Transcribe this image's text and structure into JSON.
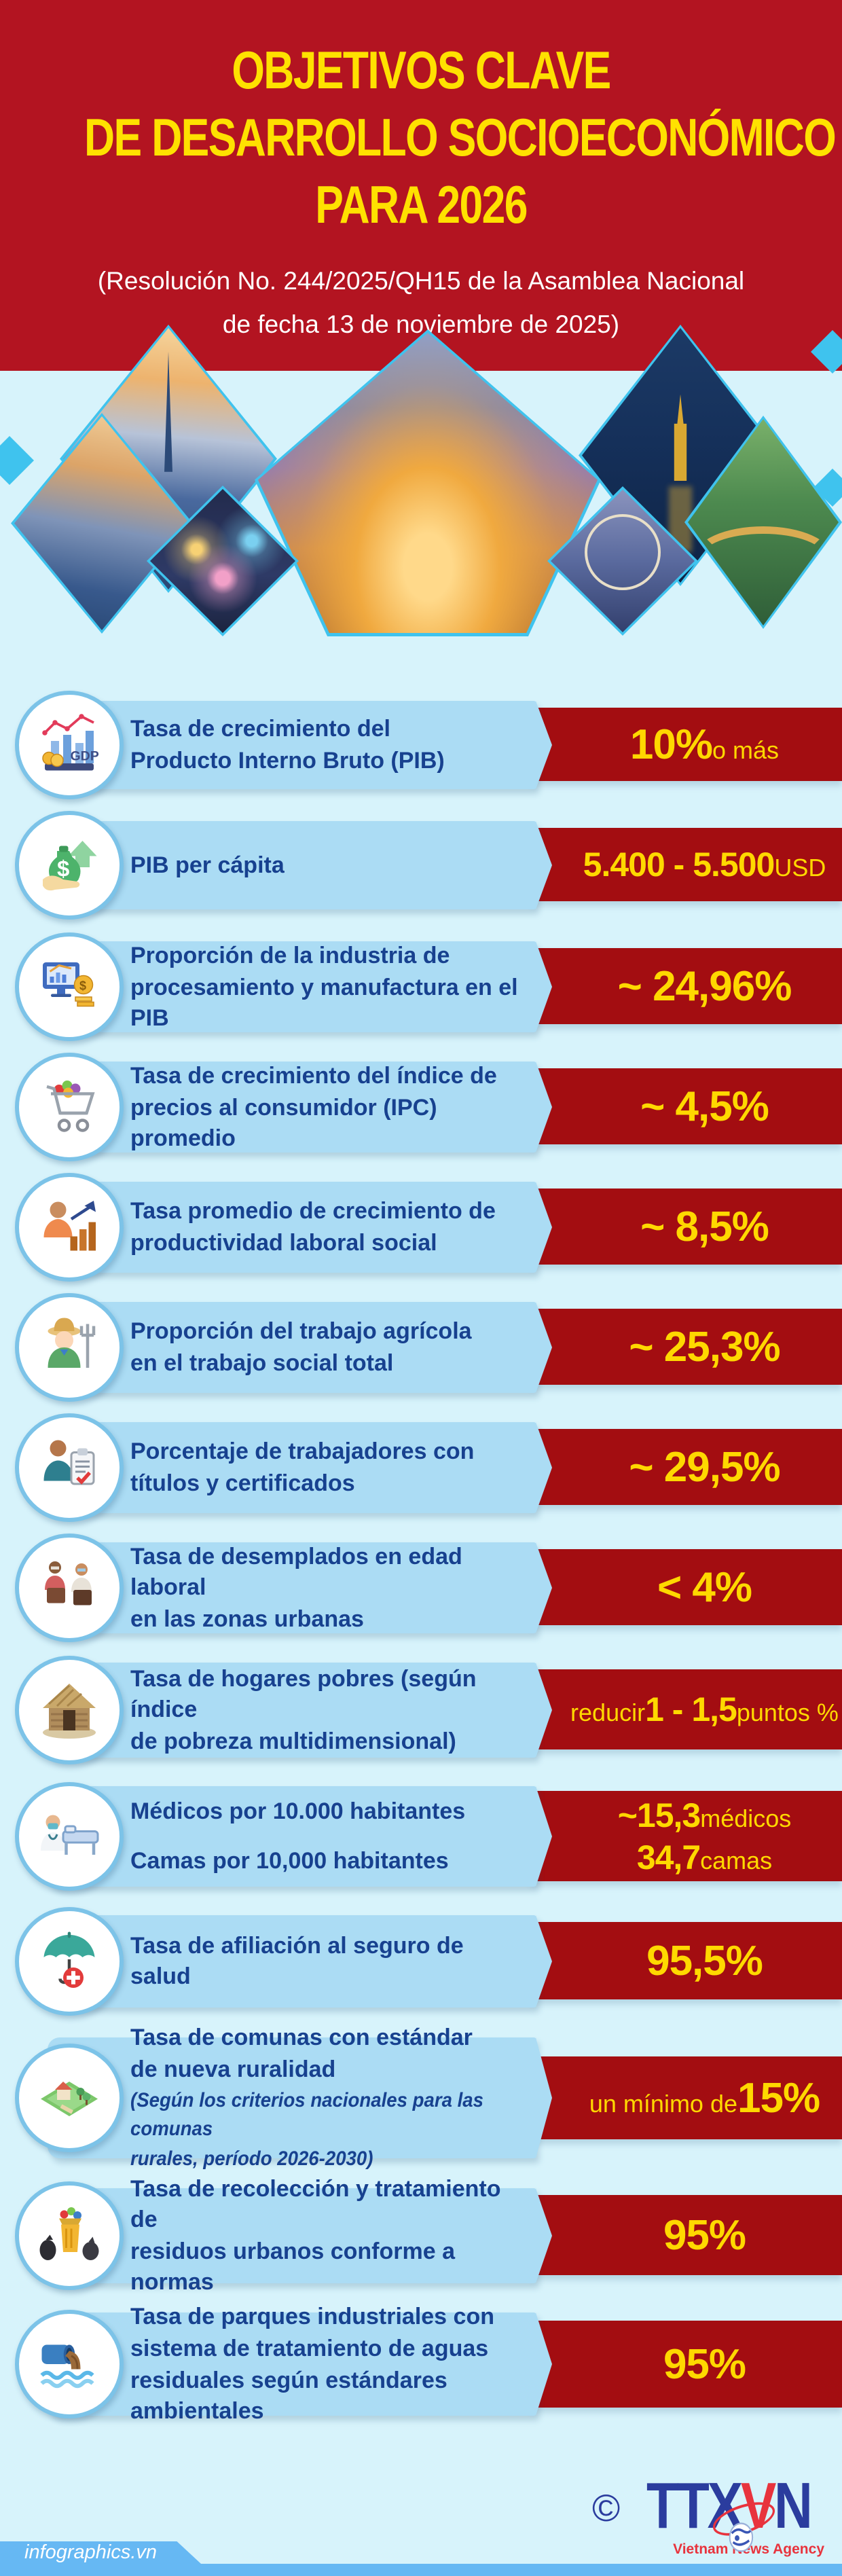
{
  "colors": {
    "header_red": "#b31421",
    "banner_red": "#a30d11",
    "title_yellow": "#ffe100",
    "value_yellow": "#ffd800",
    "banner_blue": "#abdcf4",
    "background_blue": "#d7f3fb",
    "label_blue": "#17418f",
    "footer_blue": "#66b8f3",
    "diamond_border": "#3fc3ee"
  },
  "header": {
    "title_lines": [
      "OBJETIVOS CLAVE",
      "DE DESARROLLO SOCIOECONÓMICO",
      "PARA 2026"
    ],
    "subtitle_lines": [
      "(Resolución No. 244/2025/QH15 de la Asamblea Nacional",
      "de fecha 13 de noviembre de 2025)"
    ]
  },
  "photos": {
    "diamonds": [
      "hcmc-landmark81",
      "hcmc-riverside",
      "fireworks",
      "hanoi-aerial",
      "hanoi-turtle-tower",
      "ferris-wheel",
      "golden-bridge"
    ]
  },
  "items": [
    {
      "icon": "gdp-growth-icon",
      "label_lines": [
        "Tasa de crecimiento del",
        "Producto Interno Bruto (PIB)"
      ],
      "value_lines": [
        [
          {
            "t": "10%",
            "s": "xl"
          },
          {
            "t": " o más",
            "s": "md"
          }
        ]
      ]
    },
    {
      "icon": "gdp-per-capita-icon",
      "label_lines": [
        "PIB per cápita"
      ],
      "value_lines": [
        [
          {
            "t": "5.400 - 5.500",
            "s": "lg"
          },
          {
            "t": " USD",
            "s": "md"
          }
        ]
      ]
    },
    {
      "icon": "manufacturing-share-icon",
      "label_lines": [
        "Proporción de la industria de",
        "procesamiento y manufactura en el PIB"
      ],
      "value_lines": [
        [
          {
            "t": "~ 24,96%",
            "s": "xl"
          }
        ]
      ]
    },
    {
      "icon": "cpi-cart-icon",
      "label_lines": [
        "Tasa de crecimiento del índice de",
        "precios al consumidor (IPC) promedio"
      ],
      "value_lines": [
        [
          {
            "t": "~ 4,5%",
            "s": "xl"
          }
        ]
      ]
    },
    {
      "icon": "labor-productivity-icon",
      "label_lines": [
        "Tasa promedio de crecimiento de",
        "productividad laboral social"
      ],
      "value_lines": [
        [
          {
            "t": "~ 8,5%",
            "s": "xl"
          }
        ]
      ]
    },
    {
      "icon": "agricultural-labor-icon",
      "label_lines": [
        "Proporción del trabajo agrícola",
        "en el trabajo social total"
      ],
      "value_lines": [
        [
          {
            "t": "~ 25,3%",
            "s": "xl"
          }
        ]
      ]
    },
    {
      "icon": "certified-workers-icon",
      "label_lines": [
        "Porcentaje de trabajadores con",
        "títulos y certificados"
      ],
      "value_lines": [
        [
          {
            "t": "~ 29,5%",
            "s": "xl"
          }
        ]
      ]
    },
    {
      "icon": "urban-unemployment-icon",
      "label_lines": [
        "Tasa de desemplados en edad laboral",
        "en las zonas urbanas"
      ],
      "value_lines": [
        [
          {
            "t": "< 4%",
            "s": "xl"
          }
        ]
      ]
    },
    {
      "icon": "poor-households-icon",
      "label_lines": [
        "Tasa de hogares pobres (según índice",
        "de pobreza multidimensional)"
      ],
      "value_lines": [
        [
          {
            "t": "reducir ",
            "s": "md"
          },
          {
            "t": "1 - 1,5",
            "s": "lg"
          },
          {
            "t": " puntos %",
            "s": "md"
          }
        ]
      ]
    },
    {
      "icon": "doctors-beds-icon",
      "spread": true,
      "label_lines": [
        "Médicos por 10.000 habitantes",
        "Camas por 10,000 habitantes"
      ],
      "value_lines": [
        [
          {
            "t": "~15,3",
            "s": "lg"
          },
          {
            "t": " médicos",
            "s": "md"
          }
        ],
        [
          {
            "t": "34,7",
            "s": "lg"
          },
          {
            "t": " camas",
            "s": "md"
          }
        ]
      ]
    },
    {
      "icon": "health-insurance-icon",
      "label_lines": [
        "Tasa de afiliación al seguro de salud"
      ],
      "value_lines": [
        [
          {
            "t": "95,5%",
            "s": "xl"
          }
        ]
      ]
    },
    {
      "icon": "rural-communes-icon",
      "label_lines": [
        "Tasa de comunas con estándar",
        "de nueva ruralidad"
      ],
      "note_lines": [
        "(Según los criterios nacionales para las comunas",
        "rurales, período 2026-2030)"
      ],
      "value_lines": [
        [
          {
            "t": "un mínimo de ",
            "s": "md"
          },
          {
            "t": "15%",
            "s": "xl"
          }
        ]
      ]
    },
    {
      "icon": "urban-waste-icon",
      "label_lines": [
        "Tasa de recolección y tratamiento de",
        "residuos urbanos conforme a normas"
      ],
      "value_lines": [
        [
          {
            "t": "95%",
            "s": "xl"
          }
        ]
      ]
    },
    {
      "icon": "wastewater-treatment-icon",
      "label_lines": [
        "Tasa de parques industriales con",
        "sistema de tratamiento de aguas",
        "residuales según estándares ambientales"
      ],
      "value_lines": [
        [
          {
            "t": "95%",
            "s": "xl"
          }
        ]
      ]
    }
  ],
  "footer": {
    "site": "infographics.vn",
    "copyright": "©",
    "logo": {
      "ttx": "TTX",
      "v": "V",
      "n": "N",
      "sub": "Vietnam News Agency"
    }
  }
}
